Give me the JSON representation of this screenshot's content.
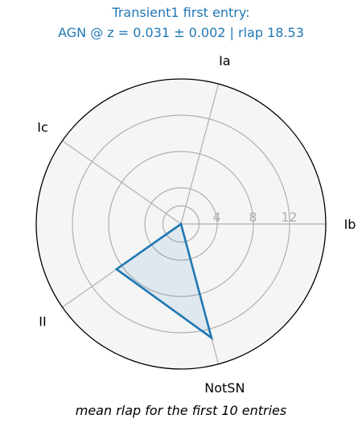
{
  "chart_data": {
    "type": "radar",
    "title_line1": "Transient1 first entry:",
    "title_line2": "AGN @ z = 0.031 ± 0.002 | rlap 18.53",
    "caption": "mean rlap for the first 10 entries",
    "categories": [
      {
        "label": "Ib",
        "angle_deg": 0
      },
      {
        "label": "Ia",
        "angle_deg": 75
      },
      {
        "label": "Ic",
        "angle_deg": 145
      },
      {
        "label": "II",
        "angle_deg": 215
      },
      {
        "label": "NotSN",
        "angle_deg": 285
      }
    ],
    "values": [
      0,
      0,
      0,
      8.7,
      13
    ],
    "radial_ticks": [
      "4",
      "8",
      "12"
    ],
    "radial_tick_values": [
      4,
      8,
      12
    ],
    "rmax": 16,
    "grid": true,
    "colors": {
      "line": "#1f77b4",
      "fill": "#1f77b4",
      "title": "#1f77b4",
      "grid": "#b0b0b0",
      "tick_label": "#b0b0b0",
      "background": "#f5f5f5"
    }
  }
}
